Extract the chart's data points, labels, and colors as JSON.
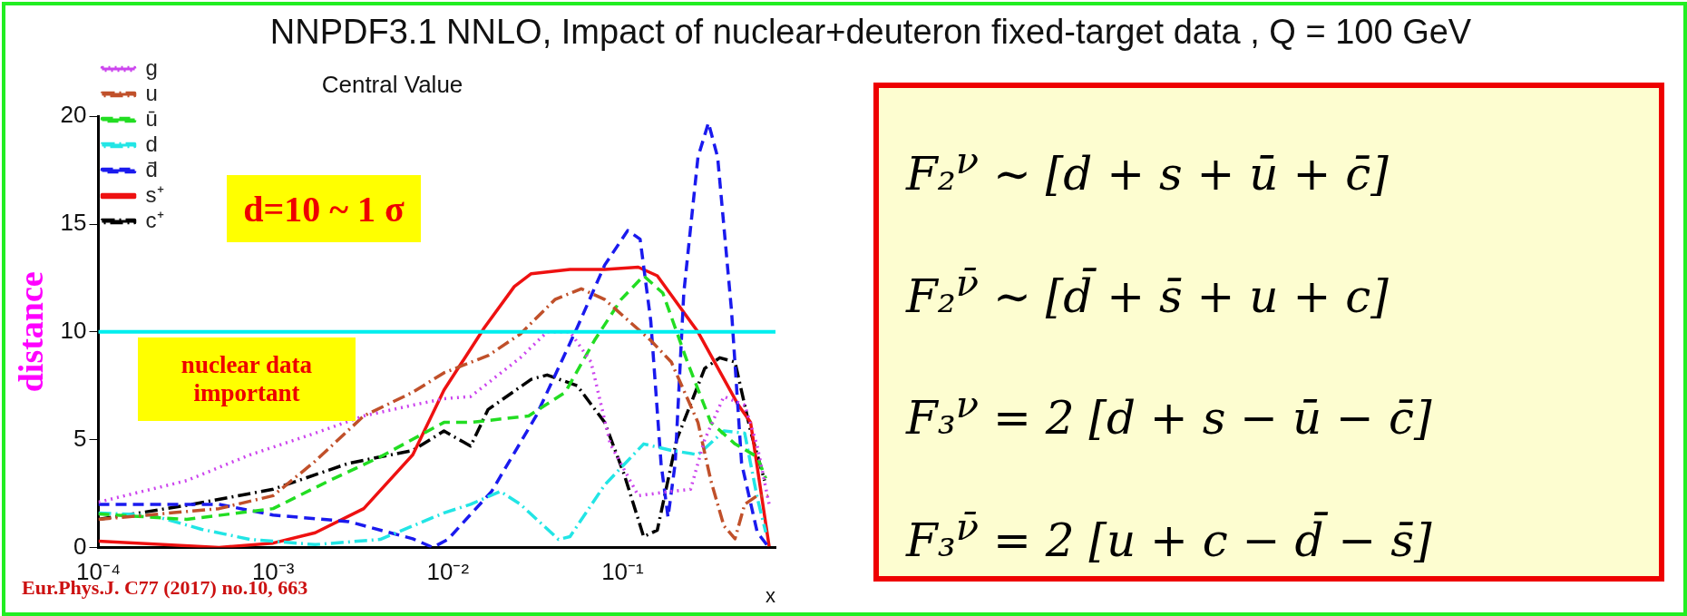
{
  "chart_data": {
    "type": "line",
    "title": "NNPDF3.1 NNLO, Impact of nuclear+deuteron fixed-target data , Q = 100 GeV",
    "subtitle": "Central Value",
    "xlabel": "x",
    "ylabel": "distance",
    "log": "x",
    "xlim": [
      0.0001,
      0.75
    ],
    "xticks": [
      {
        "value": 0.0001,
        "label": "10⁻⁴"
      },
      {
        "value": 0.001,
        "label": "10⁻³"
      },
      {
        "value": 0.01,
        "label": "10⁻²"
      },
      {
        "value": 0.1,
        "label": "10⁻¹"
      }
    ],
    "ylim": [
      0,
      20
    ],
    "yticks": [
      0,
      5,
      10,
      15,
      20
    ],
    "grid": false,
    "legend": "top left",
    "marker": "none",
    "series": [
      {
        "name": "g",
        "color": "#cc44ee",
        "line_style": "dotted",
        "x": [
          0.0001,
          0.00032,
          0.00074,
          0.00174,
          0.0033,
          0.0063,
          0.0095,
          0.0135,
          0.026,
          0.037,
          0.05,
          0.066,
          0.085,
          0.123,
          0.19,
          0.245,
          0.295,
          0.38,
          0.5,
          0.59,
          0.69
        ],
        "values": [
          2.1,
          3.1,
          4.3,
          5.3,
          6.1,
          6.6,
          6.9,
          7.0,
          8.8,
          10.0,
          10.0,
          8.6,
          4.8,
          2.4,
          2.6,
          2.7,
          5.0,
          7.0,
          6.6,
          4.7,
          2.0
        ]
      },
      {
        "name": "u",
        "color": "#c0502a",
        "line_style": "dashdot",
        "x": [
          0.0001,
          0.00049,
          0.001,
          0.00174,
          0.0033,
          0.0063,
          0.0095,
          0.017,
          0.026,
          0.041,
          0.058,
          0.079,
          0.145,
          0.19,
          0.27,
          0.32,
          0.38,
          0.44,
          0.5,
          0.59,
          0.68
        ],
        "values": [
          1.3,
          1.8,
          2.4,
          4.0,
          6.1,
          7.2,
          8.1,
          8.9,
          9.9,
          11.5,
          12.0,
          11.5,
          9.6,
          8.6,
          5.8,
          3.1,
          1.0,
          0.4,
          2.0,
          2.4,
          2.4
        ]
      },
      {
        "name": "ū",
        "color": "#22dd22",
        "line_style": "dashed",
        "x": [
          0.0001,
          0.00032,
          0.001,
          0.0021,
          0.0041,
          0.0095,
          0.0135,
          0.029,
          0.047,
          0.069,
          0.098,
          0.132,
          0.17,
          0.235,
          0.32,
          0.44,
          0.59,
          0.66
        ],
        "values": [
          1.55,
          1.3,
          1.8,
          3.1,
          4.2,
          5.8,
          5.8,
          6.1,
          7.2,
          9.6,
          11.5,
          12.6,
          11.8,
          8.6,
          5.8,
          4.8,
          4.2,
          3.2
        ]
      },
      {
        "name": "d",
        "color": "#22e5e5",
        "line_style": "dashdot",
        "x": [
          0.0001,
          0.0002,
          0.00039,
          0.00074,
          0.00174,
          0.0041,
          0.0095,
          0.0135,
          0.02,
          0.026,
          0.043,
          0.05,
          0.079,
          0.132,
          0.19,
          0.27,
          0.38,
          0.5,
          0.59,
          0.66
        ],
        "values": [
          1.6,
          1.5,
          0.84,
          0.37,
          0.13,
          0.37,
          1.6,
          2.0,
          2.6,
          2.0,
          0.37,
          0.5,
          2.9,
          4.8,
          4.5,
          4.3,
          5.4,
          5.3,
          2.3,
          0.7
        ]
      },
      {
        "name": "d̄",
        "color": "#1a1aee",
        "line_style": "dashed",
        "x": [
          0.0001,
          0.00049,
          0.001,
          0.0027,
          0.0063,
          0.0082,
          0.01,
          0.0178,
          0.032,
          0.055,
          0.079,
          0.107,
          0.126,
          0.145,
          0.166,
          0.182,
          0.2,
          0.224,
          0.27,
          0.31,
          0.35,
          0.42,
          0.48,
          0.59,
          0.68
        ],
        "values": [
          2.0,
          2.0,
          1.5,
          1.2,
          0.4,
          0.0,
          0.37,
          2.6,
          6.1,
          10.2,
          13.1,
          14.7,
          14.3,
          10.5,
          3.9,
          1.4,
          3.9,
          11.8,
          18.1,
          19.7,
          18.1,
          11.0,
          3.9,
          0.7,
          0.05
        ]
      },
      {
        "name": "s⁺",
        "color": "#ee1111",
        "line_style": "solid",
        "x": [
          0.0001,
          0.00049,
          0.001,
          0.00174,
          0.0033,
          0.0063,
          0.0095,
          0.0162,
          0.024,
          0.03,
          0.05,
          0.079,
          0.123,
          0.158,
          0.27,
          0.46,
          0.54,
          0.69
        ],
        "values": [
          0.29,
          0,
          0.2,
          0.68,
          1.8,
          4.3,
          7.3,
          10.2,
          12.1,
          12.7,
          12.9,
          12.9,
          13.0,
          12.6,
          10.0,
          6.6,
          5.8,
          0.05
        ]
      },
      {
        "name": "c⁺",
        "color": "#000000",
        "line_style": "dashdot",
        "x": [
          0.0001,
          0.00032,
          0.001,
          0.0027,
          0.0063,
          0.0095,
          0.0135,
          0.017,
          0.03,
          0.037,
          0.055,
          0.079,
          0.102,
          0.132,
          0.158,
          0.204,
          0.295,
          0.36,
          0.44,
          0.54,
          0.65
        ],
        "values": [
          1.3,
          1.95,
          2.7,
          3.9,
          4.5,
          5.4,
          4.7,
          6.4,
          7.8,
          8.0,
          7.5,
          5.8,
          3.4,
          0.5,
          0.8,
          5.0,
          8.3,
          8.8,
          8.6,
          5.4,
          3.1
        ]
      }
    ],
    "ref_lines": [
      {
        "axis": "y",
        "value": 10,
        "color": "#00eeee",
        "line_style": "solid"
      }
    ],
    "annotations": [
      "d=10 ~ 1 σ",
      "nuclear data important",
      "Eur.Phys.J. C77 (2017) no.10, 663",
      "F₂$^{ν}$ ∼ [d + s + ū + c̄]",
      "F₂$^{ν̄}$ ∼ [d̄ + s̄ + u + c]",
      "F₃$^{ν}$ = 2 [d + s − ū − c̄]",
      "F₃$^{ν̄}$ = 2 [u + c − d̄ − s̄]"
    ]
  }
}
